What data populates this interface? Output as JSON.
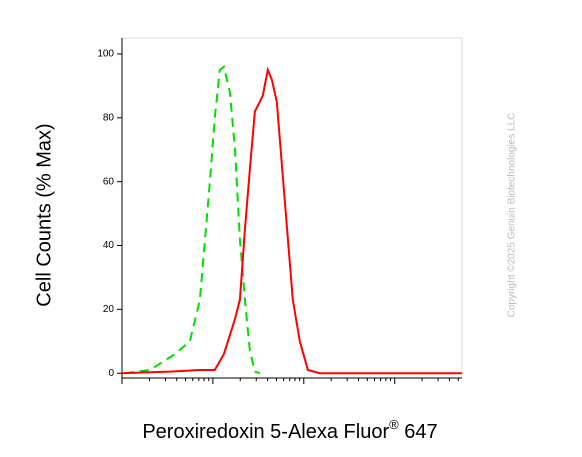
{
  "chart_data": {
    "type": "line",
    "y_label": "Cell Counts (% Max)",
    "x_label": [
      "Peroxiredoxin 5-Alexa Fluor",
      "®",
      " 647"
    ],
    "watermark": "Copyright ©2025 Genuin Biotechnologies LLC",
    "xscale": "log",
    "xlim": [
      1,
      5500
    ],
    "ylim": [
      -1.5,
      105
    ],
    "xticks": [
      1,
      10,
      100,
      1000
    ],
    "xminorticks": [
      2,
      3,
      4,
      5,
      6,
      7,
      8,
      9,
      20,
      30,
      40,
      50,
      60,
      70,
      80,
      90,
      200,
      300,
      400,
      500,
      600,
      700,
      800,
      900,
      2000,
      3000,
      4000,
      5000
    ],
    "yticks": [
      0,
      20,
      40,
      60,
      80,
      100
    ],
    "series": [
      {
        "color": "#00dd00",
        "dash": true,
        "x": [
          1.08,
          2.03,
          3.82,
          5.59,
          7.19,
          9.27,
          10.5,
          11.9,
          13.2,
          15.4,
          17.5,
          19.8,
          22.5,
          25.5,
          29.0,
          32.8
        ],
        "values": [
          0,
          1,
          6,
          10,
          23,
          60,
          80,
          95,
          96,
          88,
          70,
          42,
          23,
          7,
          0.5,
          0
        ]
      },
      {
        "color": "#ff0000",
        "dash": false,
        "x": [
          1,
          3.37,
          7.19,
          10.5,
          13.2,
          17.5,
          19.8,
          22.5,
          25.5,
          29.0,
          32.8,
          35.4,
          40.2,
          44.5,
          50.5,
          61.8,
          75.7,
          90.3,
          111,
          150,
          5500
        ],
        "values": [
          0,
          0.5,
          1,
          1,
          6,
          17,
          23,
          45,
          64,
          82,
          85,
          87,
          95,
          92,
          85,
          54,
          23,
          10,
          1,
          0,
          0
        ]
      }
    ]
  }
}
